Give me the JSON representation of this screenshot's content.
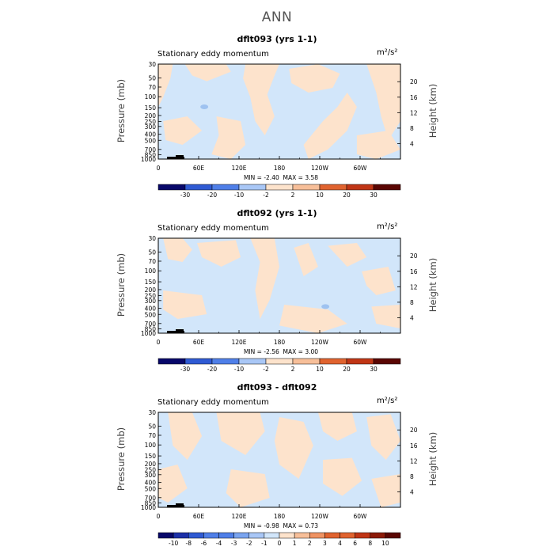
{
  "page": {
    "title": "ANN"
  },
  "colors": {
    "neg_fill": "#d2e6fa",
    "pos_fill": "#fde3cc",
    "neg_blob": "#9ec2f0",
    "scale": [
      "#08086a",
      "#1c30a8",
      "#2f5ad3",
      "#4f7fe8",
      "#7aa4ef",
      "#a9c7f6",
      "#d2e6fa",
      "#fde3cc",
      "#f7bf99",
      "#ef9363",
      "#e0632f",
      "#c03515",
      "#8c1a08",
      "#5a0603"
    ]
  },
  "chart_data": [
    {
      "type": "heatmap",
      "title": "dflt093 (yrs 1-1)",
      "subtitle": "Stationary eddy momentum",
      "units": "m²/s²",
      "ylabel": "Pressure (mb)",
      "y2label": "Height (km)",
      "x_ticks": [
        "0",
        "60E",
        "120E",
        "180",
        "120W",
        "60W"
      ],
      "y_ticks": [
        "30",
        "50",
        "70",
        "100",
        "150",
        "200",
        "250",
        "300",
        "400",
        "500",
        "700",
        "850",
        "1000"
      ],
      "y2_ticks": [
        "20",
        "16",
        "12",
        "8",
        "4"
      ],
      "min_label": "MIN =",
      "min": "-2.40",
      "max_label": "MAX =",
      "max": "3.58",
      "colorbar_labels": [
        "-30",
        "-20",
        "-10",
        "-2",
        "2",
        "10",
        "20",
        "30"
      ]
    },
    {
      "type": "heatmap",
      "title": "dflt092 (yrs 1-1)",
      "subtitle": "Stationary eddy momentum",
      "units": "m²/s²",
      "ylabel": "Pressure (mb)",
      "y2label": "Height (km)",
      "x_ticks": [
        "0",
        "60E",
        "120E",
        "180",
        "120W",
        "60W"
      ],
      "y_ticks": [
        "30",
        "50",
        "70",
        "100",
        "150",
        "200",
        "250",
        "300",
        "400",
        "500",
        "700",
        "850",
        "1000"
      ],
      "y2_ticks": [
        "20",
        "16",
        "12",
        "8",
        "4"
      ],
      "min_label": "MIN =",
      "min": "-2.56",
      "max_label": "MAX =",
      "max": "3.00",
      "colorbar_labels": [
        "-30",
        "-20",
        "-10",
        "-2",
        "2",
        "10",
        "20",
        "30"
      ]
    },
    {
      "type": "heatmap",
      "title": "dflt093 - dflt092",
      "subtitle": "Stationary eddy momentum",
      "units": "m²/s²",
      "ylabel": "Pressure (mb)",
      "y2label": "Height (km)",
      "x_ticks": [
        "0",
        "60E",
        "120E",
        "180",
        "120W",
        "60W"
      ],
      "y_ticks": [
        "30",
        "50",
        "70",
        "100",
        "150",
        "200",
        "250",
        "300",
        "400",
        "500",
        "700",
        "850",
        "1000"
      ],
      "y2_ticks": [
        "20",
        "16",
        "12",
        "8",
        "4"
      ],
      "min_label": "MIN =",
      "min": "-0.98",
      "max_label": "MAX =",
      "max": "0.73",
      "colorbar_labels": [
        "-10",
        "-8",
        "-6",
        "-4",
        "-3",
        "-2",
        "-1",
        "0",
        "1",
        "2",
        "3",
        "4",
        "6",
        "8",
        "10"
      ]
    }
  ]
}
